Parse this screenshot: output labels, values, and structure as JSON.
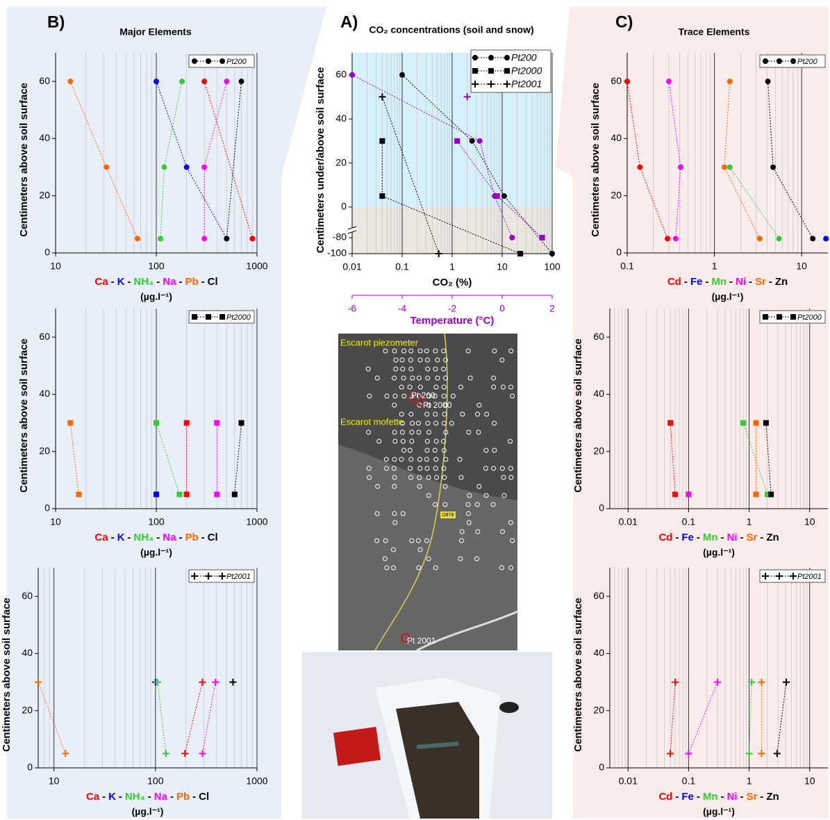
{
  "chart_data": [
    {
      "type": "scatter",
      "panel_label": "A)",
      "title": "CO₂ concentrations (soil and snow)",
      "xlabel": "CO₂ (%)",
      "x2label": "Temperature (°C)",
      "ylabel": "Centimeters under/above soil surface",
      "log_x": true,
      "xlim": [
        0.01,
        100
      ],
      "xticks": [
        0.01,
        0.1,
        1,
        10,
        100
      ],
      "x2lim": [
        -6,
        2
      ],
      "x2ticks": [
        -6,
        -4,
        -2,
        0,
        2
      ],
      "ylim": [
        -100,
        70
      ],
      "y_break": [
        -80,
        0
      ],
      "yticks": [
        -100,
        -80,
        0,
        20,
        40,
        60
      ],
      "legend_loc": "upper right",
      "series": [
        {
          "name": "Pt200",
          "marker": "circle",
          "color": "#000000",
          "x": [
            0.1,
            2.5,
            11,
            100
          ],
          "values": [
            60,
            30,
            5,
            -100
          ]
        },
        {
          "name": "Pt2000",
          "marker": "square",
          "color": "#000000",
          "x": [
            0.04,
            0.04,
            23
          ],
          "values": [
            30,
            5,
            -100
          ]
        },
        {
          "name": "Pt2001",
          "marker": "plus",
          "color": "#000000",
          "x": [
            0.04,
            0.54
          ],
          "values": [
            50,
            -100
          ]
        },
        {
          "marker": "circle",
          "color": "#9900cc",
          "axis": "x2",
          "x": [
            -6,
            -0.9,
            -0.3,
            0.4
          ],
          "values": [
            60,
            30,
            5,
            -80
          ]
        },
        {
          "marker": "square",
          "color": "#9900cc",
          "axis": "x2",
          "x": [
            -1.8,
            -0.2,
            1.6
          ],
          "values": [
            30,
            5,
            -80
          ]
        },
        {
          "marker": "plus",
          "color": "#9900cc",
          "axis": "x2",
          "x": [
            -1.4
          ],
          "values": [
            50
          ]
        }
      ]
    },
    {
      "type": "scatter",
      "panel_label": "B)",
      "title": "Major Elements",
      "ylabel": "Centimeters above soil surface",
      "xunit": "(µg.l⁻¹)",
      "name_separator": "-",
      "log_x": true,
      "xlim": [
        10,
        1000
      ],
      "xticks": [
        10,
        100,
        1000
      ],
      "ylim": [
        0,
        70
      ],
      "yticks": [
        0,
        20,
        40,
        60
      ],
      "legend": "Pt200",
      "marker": "circle",
      "legend_loc": "upper right",
      "series": [
        {
          "name": "Ca",
          "color": "#ff0000",
          "x": [
            300,
            900
          ],
          "values": [
            60,
            5
          ]
        },
        {
          "name": "K",
          "color": "#0000ff",
          "x": [
            100,
            200,
            500
          ],
          "values": [
            60,
            30,
            5
          ]
        },
        {
          "name": "NH₄",
          "color": "#33cc33",
          "x": [
            180,
            120,
            110
          ],
          "values": [
            60,
            30,
            5
          ]
        },
        {
          "name": "Na",
          "color": "#ff00ff",
          "x": [
            500,
            300,
            300
          ],
          "values": [
            60,
            30,
            5
          ]
        },
        {
          "name": "Pb",
          "color": "#ff6600",
          "x": [
            14,
            32,
            65
          ],
          "values": [
            60,
            30,
            5
          ]
        },
        {
          "name": "Cl",
          "color": "#000000",
          "x": [
            700,
            500
          ],
          "values": [
            60,
            5
          ]
        }
      ]
    },
    {
      "type": "scatter",
      "ylabel": "Centimeters above soil surface",
      "xunit": "(µg.l⁻¹)",
      "name_separator": "-",
      "log_x": true,
      "xlim": [
        10,
        1000
      ],
      "xticks": [
        10,
        100,
        1000
      ],
      "ylim": [
        0,
        70
      ],
      "yticks": [
        0,
        20,
        40,
        60
      ],
      "legend": "Pt2000",
      "marker": "square",
      "legend_loc": "upper right",
      "series": [
        {
          "name": "Ca",
          "color": "#ff0000",
          "x": [
            200,
            200
          ],
          "values": [
            30,
            5
          ]
        },
        {
          "name": "K",
          "color": "#0000ff",
          "x": [
            100
          ],
          "values": [
            5
          ]
        },
        {
          "name": "NH₄",
          "color": "#33cc33",
          "x": [
            100,
            170
          ],
          "values": [
            30,
            5
          ]
        },
        {
          "name": "Na",
          "color": "#ff00ff",
          "x": [
            400,
            400
          ],
          "values": [
            30,
            5
          ]
        },
        {
          "name": "Pb",
          "color": "#ff6600",
          "x": [
            14,
            17
          ],
          "values": [
            30,
            5
          ]
        },
        {
          "name": "Cl",
          "color": "#000000",
          "x": [
            700,
            600
          ],
          "values": [
            30,
            5
          ]
        }
      ]
    },
    {
      "type": "scatter",
      "ylabel": "Centimeters above soil surface",
      "xunit": "(µg.l⁻¹)",
      "name_separator": "-",
      "log_x": true,
      "xlim": [
        7,
        1000
      ],
      "xticks": [
        10,
        100,
        1000
      ],
      "ylim": [
        0,
        70
      ],
      "yticks": [
        0,
        20,
        40,
        60
      ],
      "legend": "Pt2001",
      "marker": "plus",
      "legend_loc": "upper right",
      "series": [
        {
          "name": "Ca",
          "color": "#ff0000",
          "x": [
            290,
            195
          ],
          "values": [
            30,
            5
          ]
        },
        {
          "name": "K",
          "color": "#0000ff",
          "x": [
            100
          ],
          "values": [
            30
          ]
        },
        {
          "name": "NH₄",
          "color": "#33cc33",
          "x": [
            105,
            127
          ],
          "values": [
            30,
            5
          ]
        },
        {
          "name": "Na",
          "color": "#ff00ff",
          "x": [
            390,
            290
          ],
          "values": [
            30,
            5
          ]
        },
        {
          "name": "Pb",
          "color": "#ff6600",
          "x": [
            7,
            13
          ],
          "values": [
            30,
            5
          ]
        },
        {
          "name": "Cl",
          "color": "#000000",
          "x": [
            580
          ],
          "values": [
            30
          ]
        }
      ]
    },
    {
      "type": "scatter",
      "panel_label": "C)",
      "title": "Trace Elements",
      "ylabel": "Centimeters above soil surface",
      "xunit": "(µg.l⁻¹)",
      "name_separator": "-",
      "log_x": true,
      "xlim": [
        0.1,
        20
      ],
      "xticks": [
        0.1,
        1,
        10
      ],
      "ylim": [
        0,
        70
      ],
      "yticks": [
        0,
        20,
        40,
        60
      ],
      "legend": "Pt200",
      "marker": "circle",
      "legend_loc": "upper right",
      "series": [
        {
          "name": "Cd",
          "color": "#ff0000",
          "x": [
            0.1,
            0.14,
            0.29
          ],
          "values": [
            60,
            30,
            5
          ]
        },
        {
          "name": "Fe",
          "color": "#0000ff",
          "x": [
            19
          ],
          "values": [
            5
          ]
        },
        {
          "name": "Mn",
          "color": "#33cc33",
          "x": [
            1.5,
            5.5
          ],
          "values": [
            30,
            5
          ]
        },
        {
          "name": "Ni",
          "color": "#ff00ff",
          "x": [
            0.3,
            0.41,
            0.36
          ],
          "values": [
            60,
            30,
            5
          ]
        },
        {
          "name": "Sr",
          "color": "#ff6600",
          "x": [
            1.5,
            1.3,
            3.3
          ],
          "values": [
            60,
            30,
            5
          ]
        },
        {
          "name": "Zn",
          "color": "#000000",
          "x": [
            4.1,
            4.7,
            13.4
          ],
          "values": [
            60,
            30,
            5
          ]
        }
      ]
    },
    {
      "type": "scatter",
      "ylabel": "Centimeters above soil surface",
      "xunit": "(µg.l⁻¹)",
      "name_separator": "-",
      "log_x": true,
      "xlim": [
        0.005,
        20
      ],
      "xticks": [
        0.01,
        0.1,
        1,
        10
      ],
      "ylim": [
        0,
        70
      ],
      "yticks": [
        0,
        20,
        40,
        60
      ],
      "legend": "Pt2000",
      "marker": "square",
      "legend_loc": "upper right",
      "series": [
        {
          "name": "Cd",
          "color": "#ff0000",
          "x": [
            0.05,
            0.06
          ],
          "values": [
            30,
            5
          ]
        },
        {
          "name": "Fe",
          "color": "#0000ff",
          "x": [],
          "values": []
        },
        {
          "name": "Mn",
          "color": "#33cc33",
          "x": [
            0.8,
            2
          ],
          "values": [
            30,
            5
          ]
        },
        {
          "name": "Ni",
          "color": "#ff00ff",
          "x": [
            0.1
          ],
          "values": [
            5
          ]
        },
        {
          "name": "Sr",
          "color": "#ff6600",
          "x": [
            1.3,
            1.3
          ],
          "values": [
            30,
            5
          ]
        },
        {
          "name": "Zn",
          "color": "#000000",
          "x": [
            1.9,
            2.3
          ],
          "values": [
            30,
            5
          ]
        }
      ]
    },
    {
      "type": "scatter",
      "ylabel": "Centimeters above soil surface",
      "xunit": "(µg.l⁻¹)",
      "name_separator": "-",
      "log_x": true,
      "xlim": [
        0.005,
        20
      ],
      "xticks": [
        0.01,
        0.1,
        1,
        10
      ],
      "ylim": [
        0,
        70
      ],
      "yticks": [
        0,
        20,
        40,
        60
      ],
      "legend": "Pt2001",
      "marker": "plus",
      "legend_loc": "upper right",
      "series": [
        {
          "name": "Cd",
          "color": "#ff0000",
          "x": [
            0.06,
            0.05
          ],
          "values": [
            30,
            5
          ]
        },
        {
          "name": "Fe",
          "color": "#0000ff",
          "x": [],
          "values": []
        },
        {
          "name": "Mn",
          "color": "#33cc33",
          "x": [
            1.1,
            1
          ],
          "values": [
            30,
            5
          ]
        },
        {
          "name": "Ni",
          "color": "#ff00ff",
          "x": [
            0.3,
            0.1
          ],
          "values": [
            30,
            5
          ]
        },
        {
          "name": "Sr",
          "color": "#ff6600",
          "x": [
            1.6,
            1.6
          ],
          "values": [
            30,
            5
          ]
        },
        {
          "name": "Zn",
          "color": "#000000",
          "x": [
            4.1,
            2.9
          ],
          "values": [
            30,
            5
          ]
        }
      ]
    }
  ],
  "map": {
    "labels": [
      "Escarot piezometer",
      "Pt 200",
      "Pt 2000",
      "Escarot mofette",
      "D978",
      "Pt 2001"
    ]
  }
}
